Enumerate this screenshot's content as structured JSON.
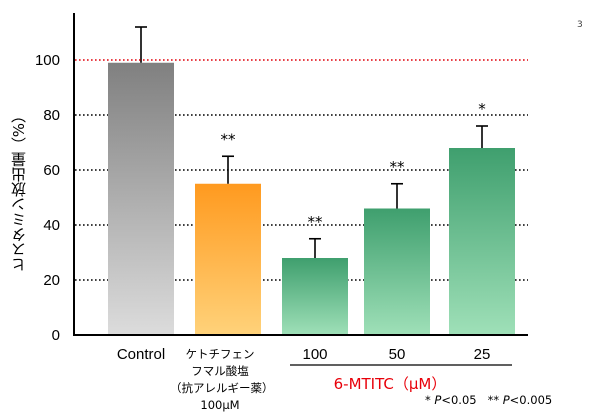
{
  "chart_data": {
    "type": "bar",
    "categories": [
      "Control",
      "ケトチフェンフマル酸塩（抗アレルギー薬）100μM",
      "100",
      "50",
      "25"
    ],
    "values": [
      99,
      55,
      28,
      46,
      68
    ],
    "errors": [
      13,
      10,
      7,
      9,
      8
    ],
    "significance": [
      "",
      "**",
      "**",
      "**",
      "*"
    ],
    "ylabel": "ヒスタミン放出量（%）",
    "yticks": [
      "0",
      "20",
      "40",
      "60",
      "80",
      "100"
    ],
    "ylim": [
      0,
      115
    ],
    "reference_line": 100,
    "grid": "dotted horizontal lines at 20, 40, 60, 80",
    "group_label": "6-MTITC（μM）",
    "colors": {
      "control": "#9a9a9a",
      "ketotifen": "#ffa233",
      "mtitc": "#52b07f",
      "reference_line": "#e0000a",
      "group_label": "#e8000a"
    }
  },
  "labels": {
    "control": "Control",
    "ketotifen_lines": [
      "ケトチフェン",
      "フマル酸塩",
      "（抗アレルギー薬）",
      "100μM"
    ],
    "doses": [
      "100",
      "50",
      "25"
    ],
    "group": "6-MTITC（μM）"
  },
  "pnote": {
    "star1": "* ",
    "star2": "** ",
    "p": "P",
    "lt1": "<0.05",
    "lt2": "<0.005"
  },
  "corner_mark": "3"
}
